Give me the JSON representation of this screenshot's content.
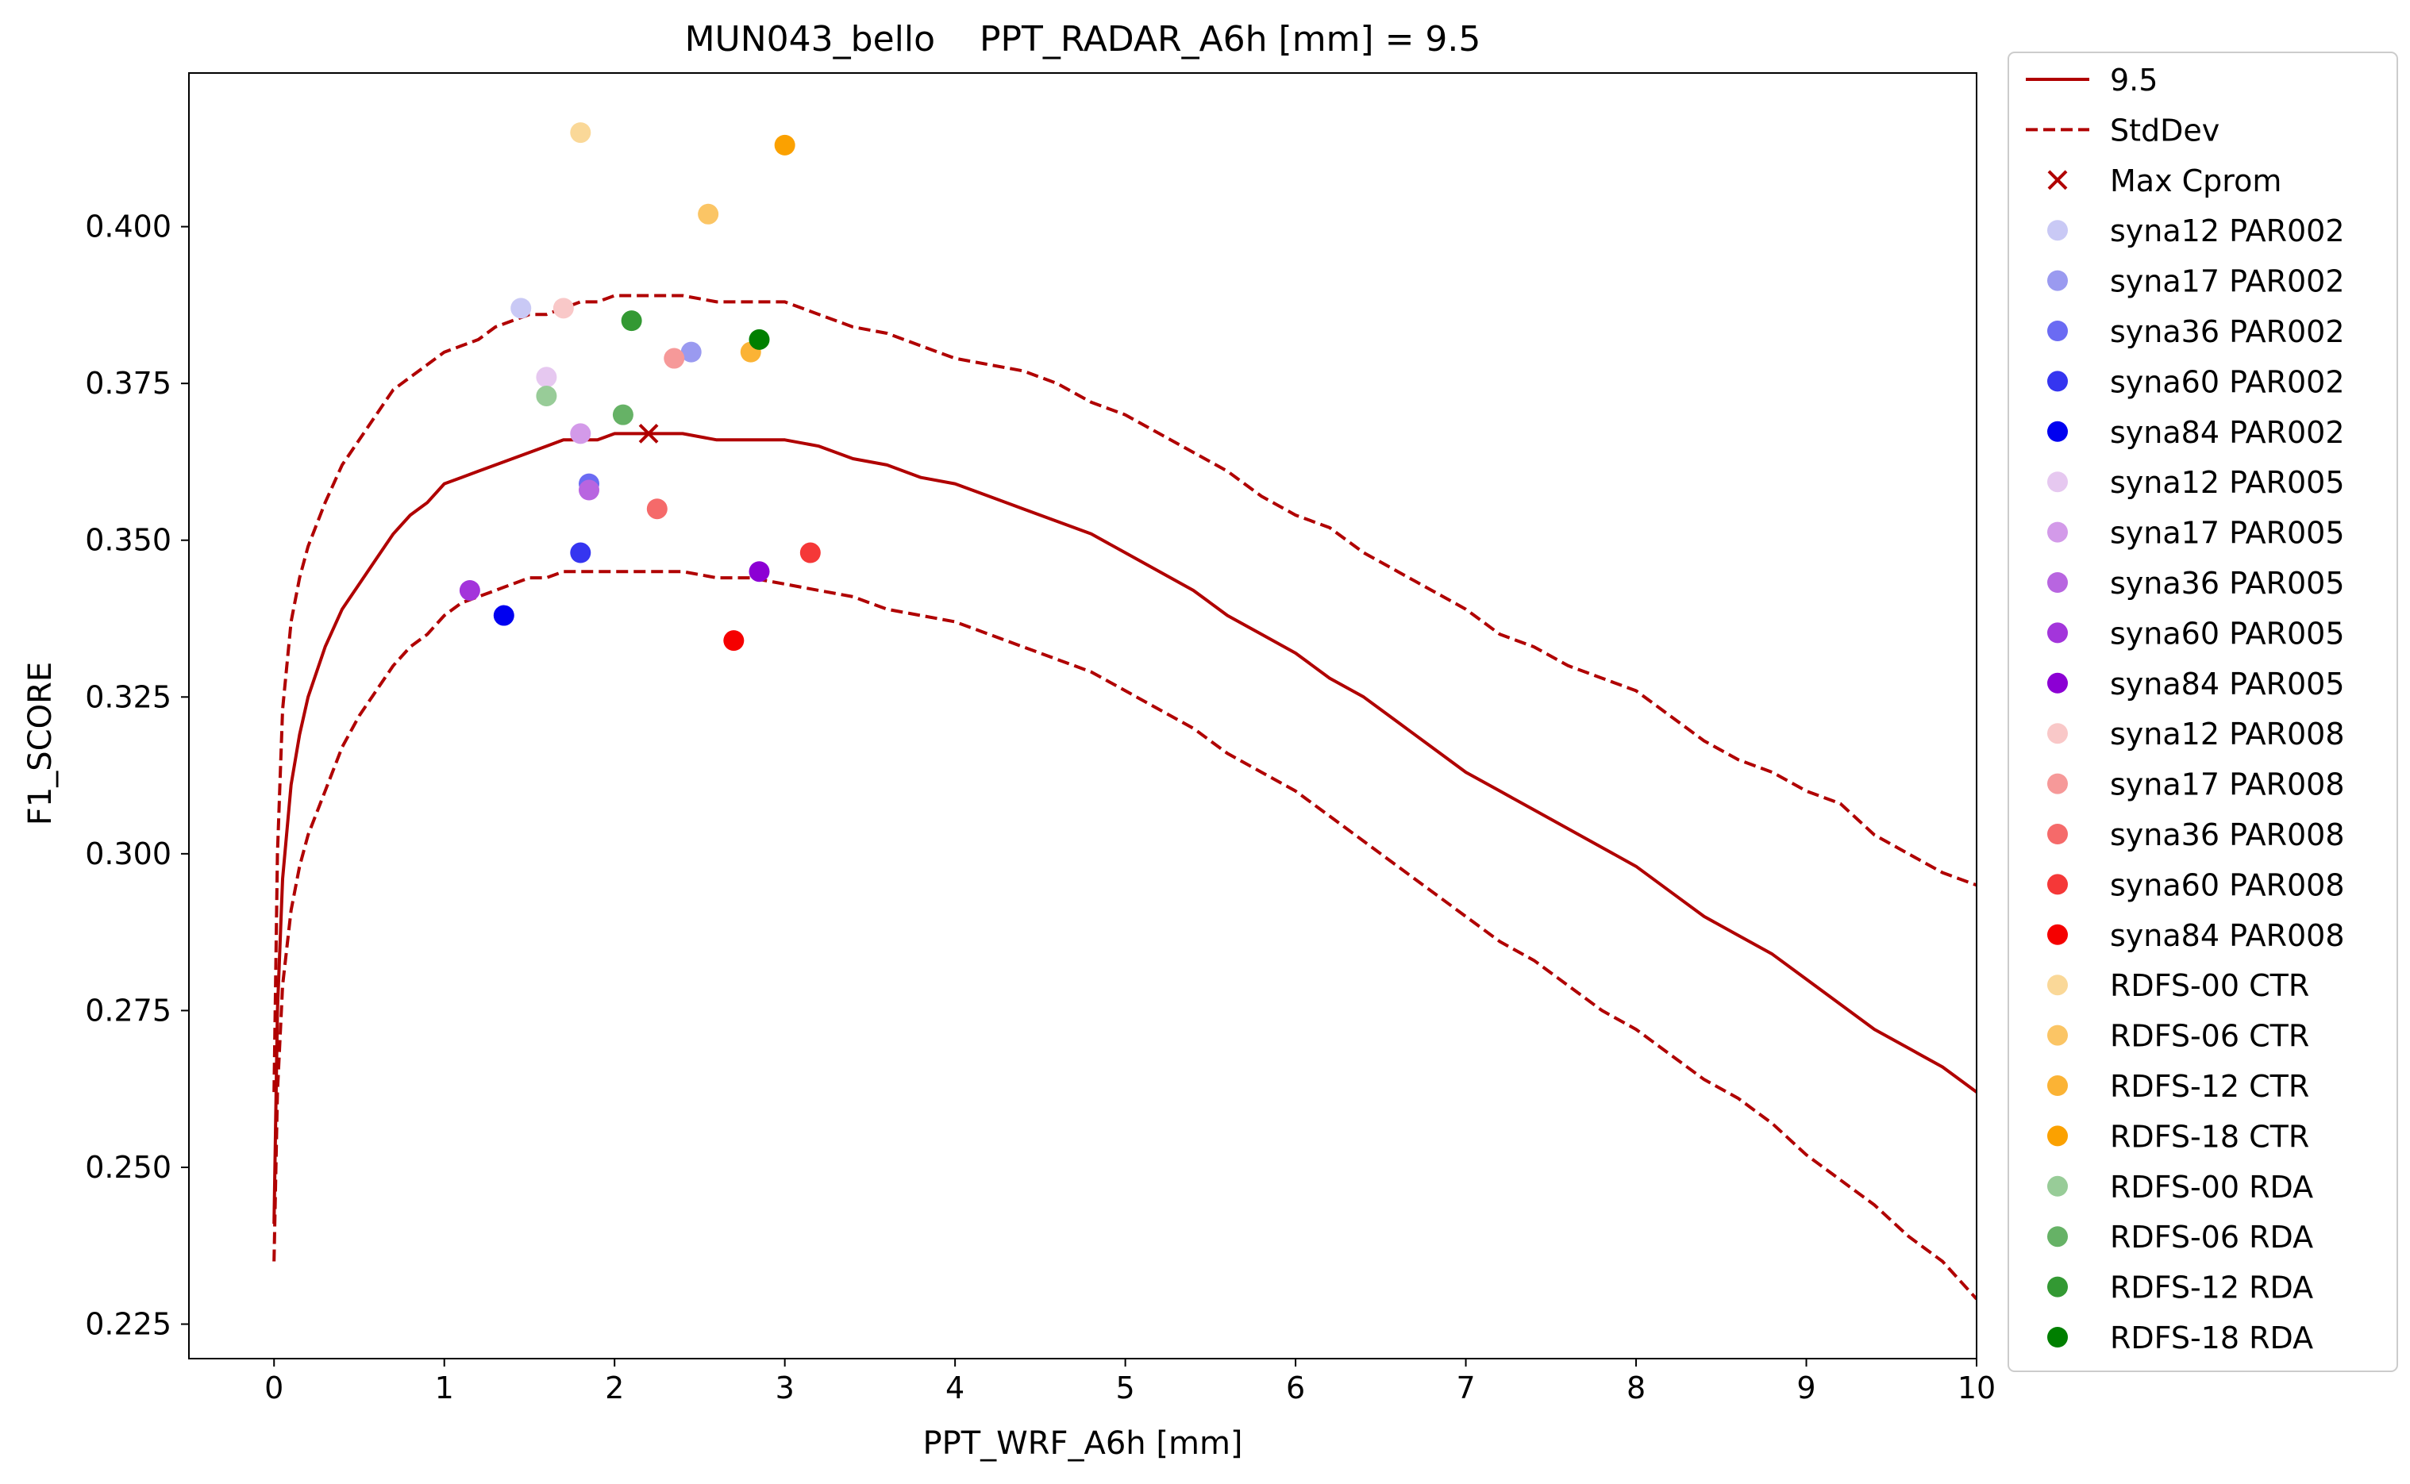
{
  "chart_data": {
    "type": "scatter",
    "title": "MUN043_bello    PPT_RADAR_A6h [mm] = 9.5",
    "xlabel": "PPT_WRF_A6h [mm]",
    "ylabel": "F1_SCORE",
    "xlim": [
      -0.5,
      10
    ],
    "ylim": [
      0.2195,
      0.4245
    ],
    "x_ticks": [
      0,
      1,
      2,
      3,
      4,
      5,
      6,
      7,
      8,
      9,
      10
    ],
    "y_ticks": [
      0.225,
      0.25,
      0.275,
      0.3,
      0.325,
      0.35,
      0.375,
      0.4
    ],
    "x_tick_labels": [
      "0",
      "1",
      "2",
      "3",
      "4",
      "5",
      "6",
      "7",
      "8",
      "9",
      "10"
    ],
    "y_tick_labels": [
      "0.225",
      "0.250",
      "0.275",
      "0.300",
      "0.325",
      "0.350",
      "0.375",
      "0.400"
    ],
    "grid": false,
    "legend_position": "outside-right",
    "lines": [
      {
        "name": "9.5",
        "style": "solid",
        "color": "#b00000",
        "x": [
          0,
          0.02,
          0.05,
          0.1,
          0.15,
          0.2,
          0.3,
          0.4,
          0.5,
          0.6,
          0.7,
          0.8,
          0.9,
          1.0,
          1.1,
          1.2,
          1.3,
          1.4,
          1.5,
          1.6,
          1.7,
          1.8,
          1.9,
          2.0,
          2.2,
          2.4,
          2.6,
          2.8,
          3.0,
          3.2,
          3.4,
          3.6,
          3.8,
          4.0,
          4.2,
          4.4,
          4.6,
          4.8,
          5.0,
          5.2,
          5.4,
          5.6,
          5.8,
          6.0,
          6.2,
          6.4,
          6.6,
          6.8,
          7.0,
          7.2,
          7.4,
          7.6,
          7.8,
          8.0,
          8.2,
          8.4,
          8.6,
          8.8,
          9.0,
          9.2,
          9.4,
          9.6,
          9.8,
          10.0
        ],
        "y": [
          0.241,
          0.275,
          0.296,
          0.311,
          0.319,
          0.325,
          0.333,
          0.339,
          0.343,
          0.347,
          0.351,
          0.354,
          0.356,
          0.359,
          0.36,
          0.361,
          0.362,
          0.363,
          0.364,
          0.365,
          0.366,
          0.366,
          0.366,
          0.367,
          0.367,
          0.367,
          0.366,
          0.366,
          0.366,
          0.365,
          0.363,
          0.362,
          0.36,
          0.359,
          0.357,
          0.355,
          0.353,
          0.351,
          0.348,
          0.345,
          0.342,
          0.338,
          0.335,
          0.332,
          0.328,
          0.325,
          0.321,
          0.317,
          0.313,
          0.31,
          0.307,
          0.304,
          0.301,
          0.298,
          0.294,
          0.29,
          0.287,
          0.284,
          0.28,
          0.276,
          0.272,
          0.269,
          0.266,
          0.262
        ]
      },
      {
        "name": "StdDev",
        "style": "dashed",
        "color": "#b00000",
        "x": [
          0,
          0.02,
          0.05,
          0.1,
          0.15,
          0.2,
          0.3,
          0.4,
          0.5,
          0.6,
          0.7,
          0.8,
          0.9,
          1.0,
          1.1,
          1.2,
          1.3,
          1.4,
          1.5,
          1.6,
          1.7,
          1.8,
          1.9,
          2.0,
          2.2,
          2.4,
          2.6,
          2.8,
          3.0,
          3.2,
          3.4,
          3.6,
          3.8,
          4.0,
          4.2,
          4.4,
          4.6,
          4.8,
          5.0,
          5.2,
          5.4,
          5.6,
          5.8,
          6.0,
          6.2,
          6.4,
          6.6,
          6.8,
          7.0,
          7.2,
          7.4,
          7.6,
          7.8,
          8.0,
          8.2,
          8.4,
          8.6,
          8.8,
          9.0,
          9.2,
          9.4,
          9.6,
          9.8,
          10.0
        ],
        "y": [
          0.262,
          0.3,
          0.323,
          0.337,
          0.344,
          0.349,
          0.356,
          0.362,
          0.366,
          0.37,
          0.374,
          0.376,
          0.378,
          0.38,
          0.381,
          0.382,
          0.384,
          0.385,
          0.386,
          0.386,
          0.387,
          0.388,
          0.388,
          0.389,
          0.389,
          0.389,
          0.388,
          0.388,
          0.388,
          0.386,
          0.384,
          0.383,
          0.381,
          0.379,
          0.378,
          0.377,
          0.375,
          0.372,
          0.37,
          0.367,
          0.364,
          0.361,
          0.357,
          0.354,
          0.352,
          0.348,
          0.345,
          0.342,
          0.339,
          0.335,
          0.333,
          0.33,
          0.328,
          0.326,
          0.322,
          0.318,
          0.315,
          0.313,
          0.31,
          0.308,
          0.303,
          0.3,
          0.297,
          0.295
        ]
      },
      {
        "name": "StdDev lower",
        "style": "dashed",
        "color": "#b00000",
        "x": [
          0,
          0.02,
          0.05,
          0.1,
          0.15,
          0.2,
          0.3,
          0.4,
          0.5,
          0.6,
          0.7,
          0.8,
          0.9,
          1.0,
          1.1,
          1.2,
          1.3,
          1.4,
          1.5,
          1.6,
          1.7,
          1.8,
          1.9,
          2.0,
          2.2,
          2.4,
          2.6,
          2.8,
          3.0,
          3.2,
          3.4,
          3.6,
          3.8,
          4.0,
          4.2,
          4.4,
          4.6,
          4.8,
          5.0,
          5.2,
          5.4,
          5.6,
          5.8,
          6.0,
          6.2,
          6.4,
          6.6,
          6.8,
          7.0,
          7.2,
          7.4,
          7.6,
          7.8,
          8.0,
          8.2,
          8.4,
          8.6,
          8.8,
          9.0,
          9.2,
          9.4,
          9.6,
          9.8,
          10.0
        ],
        "y": [
          0.235,
          0.262,
          0.279,
          0.291,
          0.298,
          0.303,
          0.31,
          0.317,
          0.322,
          0.326,
          0.33,
          0.333,
          0.335,
          0.338,
          0.34,
          0.341,
          0.342,
          0.343,
          0.344,
          0.344,
          0.345,
          0.345,
          0.345,
          0.345,
          0.345,
          0.345,
          0.344,
          0.344,
          0.343,
          0.342,
          0.341,
          0.339,
          0.338,
          0.337,
          0.335,
          0.333,
          0.331,
          0.329,
          0.326,
          0.323,
          0.32,
          0.316,
          0.313,
          0.31,
          0.306,
          0.302,
          0.298,
          0.294,
          0.29,
          0.286,
          0.283,
          0.279,
          0.275,
          0.272,
          0.268,
          0.264,
          0.261,
          0.257,
          0.252,
          0.248,
          0.244,
          0.239,
          0.235,
          0.229
        ]
      }
    ],
    "max_cprom": {
      "name": "Max Cprom",
      "x": 2.2,
      "y": 0.367,
      "color": "#b00000"
    },
    "scatter_series": [
      {
        "name": "syna12 PAR002",
        "color": "#c9c9f5",
        "x": 1.45,
        "y": 0.387
      },
      {
        "name": "syna17 PAR002",
        "color": "#9a9af0",
        "x": 2.45,
        "y": 0.38
      },
      {
        "name": "syna36 PAR002",
        "color": "#6b6bf3",
        "x": 1.85,
        "y": 0.359
      },
      {
        "name": "syna60 PAR002",
        "color": "#3535f0",
        "x": 1.8,
        "y": 0.348
      },
      {
        "name": "syna84 PAR002",
        "color": "#0000f0",
        "x": 1.35,
        "y": 0.338
      },
      {
        "name": "syna12 PAR005",
        "color": "#e6c8f0",
        "x": 1.6,
        "y": 0.376
      },
      {
        "name": "syna17 PAR005",
        "color": "#d39ae9",
        "x": 1.8,
        "y": 0.367
      },
      {
        "name": "syna36 PAR005",
        "color": "#b865e0",
        "x": 1.85,
        "y": 0.358
      },
      {
        "name": "syna60 PAR005",
        "color": "#a335db",
        "x": 1.15,
        "y": 0.342
      },
      {
        "name": "syna84 PAR005",
        "color": "#8c00d4",
        "x": 2.85,
        "y": 0.345
      },
      {
        "name": "syna12 PAR008",
        "color": "#f9c8c8",
        "x": 1.7,
        "y": 0.387
      },
      {
        "name": "syna17 PAR008",
        "color": "#f69999",
        "x": 2.35,
        "y": 0.379
      },
      {
        "name": "syna36 PAR008",
        "color": "#f56a6a",
        "x": 2.25,
        "y": 0.355
      },
      {
        "name": "syna60 PAR008",
        "color": "#f53838",
        "x": 3.15,
        "y": 0.348
      },
      {
        "name": "syna84 PAR008",
        "color": "#f50000",
        "x": 2.7,
        "y": 0.334
      },
      {
        "name": "RDFS-00 CTR",
        "color": "#fad898",
        "x": 1.8,
        "y": 0.415
      },
      {
        "name": "RDFS-06 CTR",
        "color": "#fbc565",
        "x": 2.55,
        "y": 0.402
      },
      {
        "name": "RDFS-12 CTR",
        "color": "#fbb335",
        "x": 2.8,
        "y": 0.38
      },
      {
        "name": "RDFS-18 CTR",
        "color": "#fba100",
        "x": 3.0,
        "y": 0.413
      },
      {
        "name": "RDFS-00 RDA",
        "color": "#98cc98",
        "x": 1.6,
        "y": 0.373
      },
      {
        "name": "RDFS-06 RDA",
        "color": "#66b266",
        "x": 2.05,
        "y": 0.37
      },
      {
        "name": "RDFS-12 RDA",
        "color": "#339933",
        "x": 2.1,
        "y": 0.385
      },
      {
        "name": "RDFS-18 RDA",
        "color": "#007f00",
        "x": 2.85,
        "y": 0.382
      }
    ],
    "legend": [
      {
        "label": "9.5",
        "marker": "line-solid",
        "color": "#b00000"
      },
      {
        "label": "StdDev",
        "marker": "line-dashed",
        "color": "#b00000"
      },
      {
        "label": "Max Cprom",
        "marker": "x",
        "color": "#b00000"
      },
      {
        "label": "syna12 PAR002",
        "marker": "dot",
        "color": "#c9c9f5"
      },
      {
        "label": "syna17 PAR002",
        "marker": "dot",
        "color": "#9a9af0"
      },
      {
        "label": "syna36 PAR002",
        "marker": "dot",
        "color": "#6b6bf3"
      },
      {
        "label": "syna60 PAR002",
        "marker": "dot",
        "color": "#3535f0"
      },
      {
        "label": "syna84 PAR002",
        "marker": "dot",
        "color": "#0000f0"
      },
      {
        "label": "syna12 PAR005",
        "marker": "dot",
        "color": "#e6c8f0"
      },
      {
        "label": "syna17 PAR005",
        "marker": "dot",
        "color": "#d39ae9"
      },
      {
        "label": "syna36 PAR005",
        "marker": "dot",
        "color": "#b865e0"
      },
      {
        "label": "syna60 PAR005",
        "marker": "dot",
        "color": "#a335db"
      },
      {
        "label": "syna84 PAR005",
        "marker": "dot",
        "color": "#8c00d4"
      },
      {
        "label": "syna12 PAR008",
        "marker": "dot",
        "color": "#f9c8c8"
      },
      {
        "label": "syna17 PAR008",
        "marker": "dot",
        "color": "#f69999"
      },
      {
        "label": "syna36 PAR008",
        "marker": "dot",
        "color": "#f56a6a"
      },
      {
        "label": "syna60 PAR008",
        "marker": "dot",
        "color": "#f53838"
      },
      {
        "label": "syna84 PAR008",
        "marker": "dot",
        "color": "#f50000"
      },
      {
        "label": " RDFS-00 CTR",
        "marker": "dot",
        "color": "#fad898"
      },
      {
        "label": " RDFS-06 CTR",
        "marker": "dot",
        "color": "#fbc565"
      },
      {
        "label": " RDFS-12 CTR",
        "marker": "dot",
        "color": "#fbb335"
      },
      {
        "label": " RDFS-18 CTR",
        "marker": "dot",
        "color": "#fba100"
      },
      {
        "label": " RDFS-00 RDA",
        "marker": "dot",
        "color": "#98cc98"
      },
      {
        "label": " RDFS-06 RDA",
        "marker": "dot",
        "color": "#66b266"
      },
      {
        "label": " RDFS-12 RDA",
        "marker": "dot",
        "color": "#339933"
      },
      {
        "label": " RDFS-18 RDA",
        "marker": "dot",
        "color": "#007f00"
      }
    ]
  }
}
